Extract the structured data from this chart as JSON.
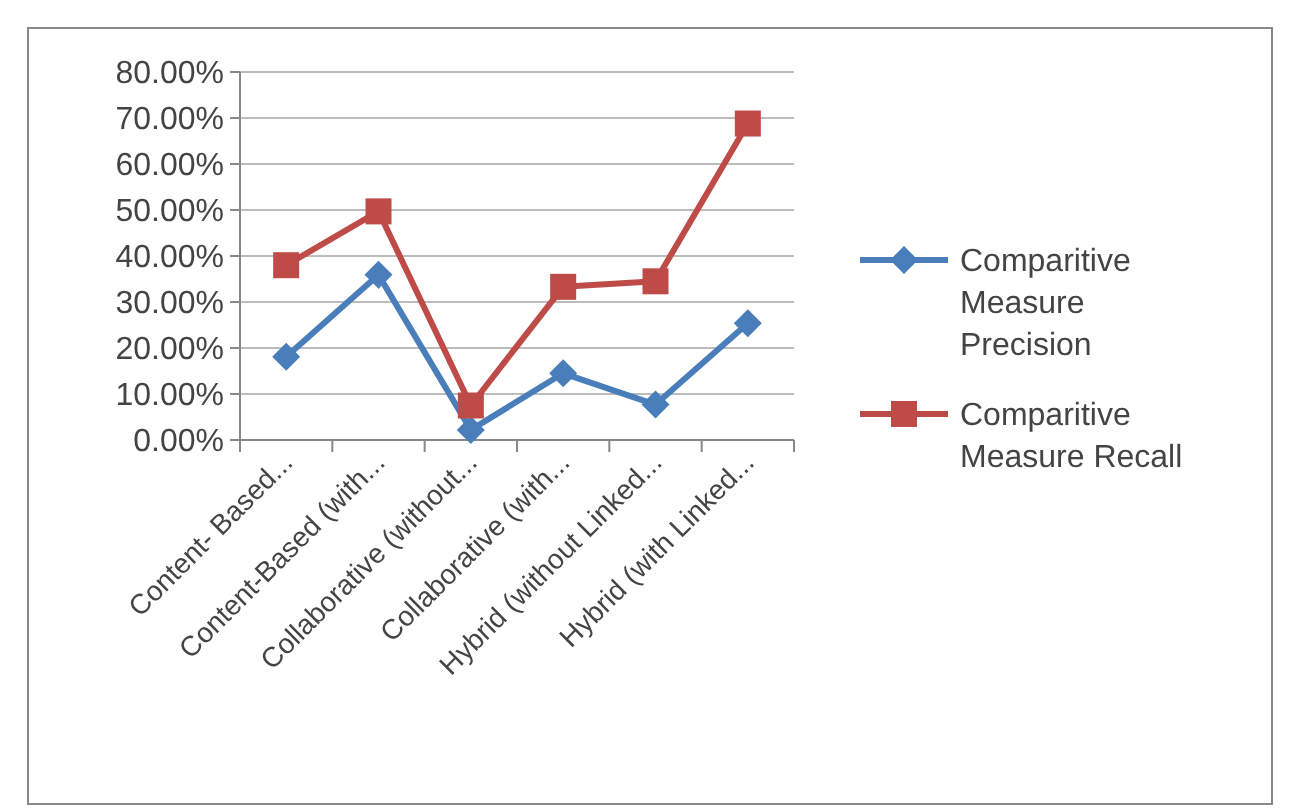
{
  "chart_data": {
    "type": "line",
    "categories": [
      "Content- Based...",
      "Content-Based (with...",
      "Collaborative (without...",
      "Collaborative (with...",
      "Hybrid (without Linked...",
      "Hybrid (with Linked..."
    ],
    "series": [
      {
        "name": "Comparitive Measure Precision",
        "color": "#4a7ebb",
        "marker": "diamond",
        "values": [
          18.1,
          35.9,
          2.2,
          14.5,
          7.7,
          25.4
        ]
      },
      {
        "name": "Comparitive Measure Recall",
        "color": "#be4b48",
        "marker": "square",
        "values": [
          38,
          49.7,
          7.5,
          33.3,
          34.5,
          68.8
        ]
      }
    ],
    "ylim": [
      0,
      80
    ],
    "yticks": [
      {
        "value": 0,
        "label": "0.00%"
      },
      {
        "value": 10,
        "label": "10.00%"
      },
      {
        "value": 20,
        "label": "20.00%"
      },
      {
        "value": 30,
        "label": "30.00%"
      },
      {
        "value": 40,
        "label": "40.00%"
      },
      {
        "value": 50,
        "label": "50.00%"
      },
      {
        "value": 60,
        "label": "60.00%"
      },
      {
        "value": 70,
        "label": "70.00%"
      },
      {
        "value": 80,
        "label": "80.00%"
      }
    ],
    "grid": "y",
    "legend": "right"
  }
}
